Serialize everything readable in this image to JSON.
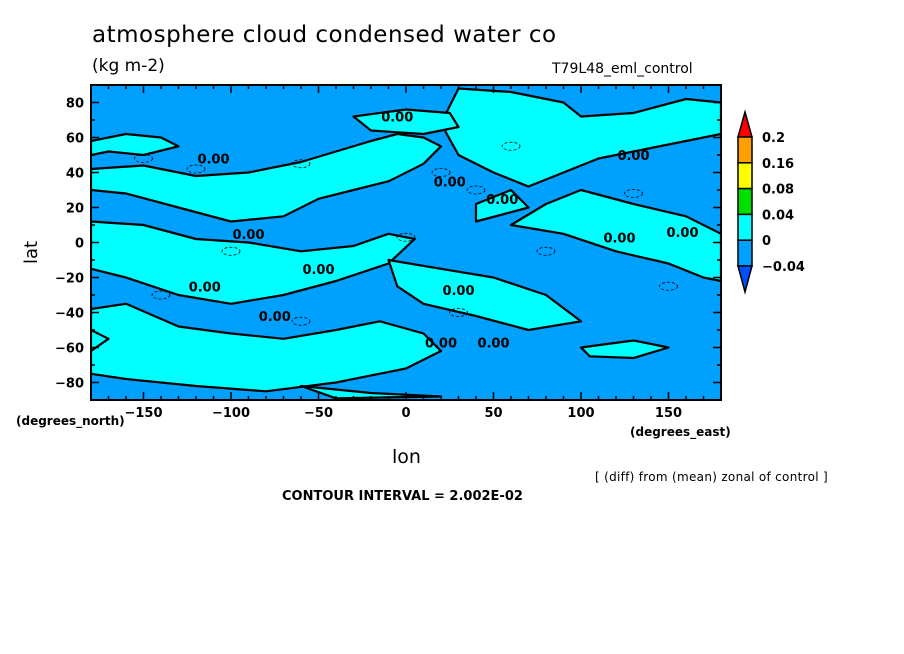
{
  "chart_data": {
    "type": "heatmap",
    "subtype": "filled-contour-map",
    "title": "atmosphere cloud condensed water co",
    "units": "(kg m-2)",
    "run_label": "T79L48_eml_control",
    "xlabel": "lon",
    "ylabel": "lat",
    "x_units": "(degrees_east)",
    "y_units": "(degrees_north)",
    "xlim": [
      -180,
      180
    ],
    "ylim": [
      -90,
      90
    ],
    "x_ticks": [
      -150,
      -100,
      -50,
      0,
      50,
      100,
      150
    ],
    "x_tick_labels": [
      "-150",
      "-100",
      "-50",
      "0",
      "50",
      "100",
      "150"
    ],
    "y_ticks": [
      80,
      60,
      40,
      20,
      0,
      -20,
      -40,
      -60,
      -80
    ],
    "y_tick_labels": [
      "80",
      "60",
      "40",
      "20",
      "0",
      "-20",
      "-40",
      "-60",
      "-80"
    ],
    "colorbar": {
      "levels": [
        -0.04,
        0,
        0.04,
        0.08,
        0.16,
        0.2
      ],
      "level_labels": [
        "-0.04",
        "0",
        "0.04",
        "0.08",
        "0.16",
        "0.2"
      ],
      "colors": [
        "#0050ff",
        "#00a0ff",
        "#00ffff",
        "#00e000",
        "#ffff00",
        "#ffa000",
        "#ff0000"
      ],
      "extend": "both",
      "orientation": "vertical"
    },
    "contour_labels": [
      {
        "text": "0.00",
        "lon": -5,
        "lat": 72
      },
      {
        "text": "0.00",
        "lon": -110,
        "lat": 48
      },
      {
        "text": "0.00",
        "lon": 25,
        "lat": 35
      },
      {
        "text": "0.00",
        "lon": 55,
        "lat": 25
      },
      {
        "text": "0.00",
        "lon": 130,
        "lat": 50
      },
      {
        "text": "0.00",
        "lon": -90,
        "lat": 5
      },
      {
        "text": "0.00",
        "lon": 122,
        "lat": 3
      },
      {
        "text": "0.00",
        "lon": 158,
        "lat": 6
      },
      {
        "text": "0.00",
        "lon": -50,
        "lat": -15
      },
      {
        "text": "0.00",
        "lon": -115,
        "lat": -25
      },
      {
        "text": "0.00",
        "lon": 30,
        "lat": -27
      },
      {
        "text": "0.00",
        "lon": -75,
        "lat": -42
      },
      {
        "text": "0.00",
        "lon": 20,
        "lat": -57
      },
      {
        "text": "0.00",
        "lon": 50,
        "lat": -57
      }
    ],
    "field_note": "Contour field alternates between slightly negative (-0.04 to 0) and slightly positive (0 to 0.04) regions; zero contour drawn bold",
    "annotation": "[ (diff) from (mean) zonal of control ]",
    "contour_interval": "CONTOUR INTERVAL = 2.002E-02"
  }
}
